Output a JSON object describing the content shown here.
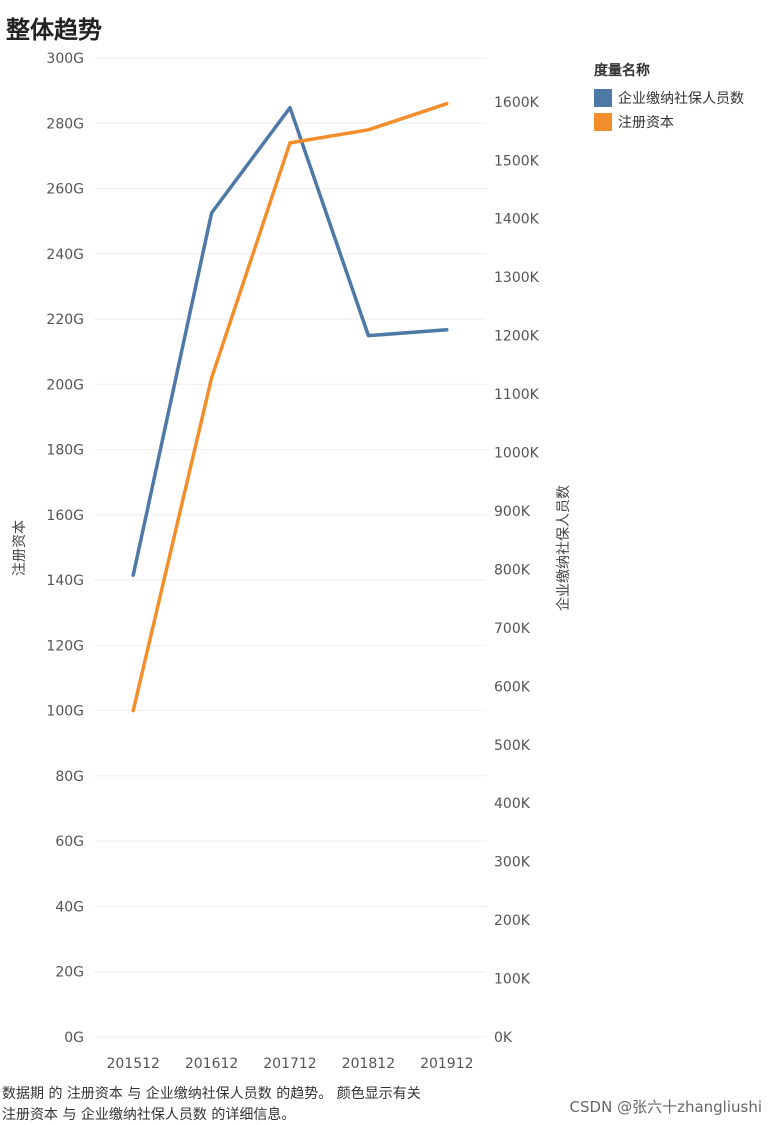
{
  "title": "整体趋势",
  "legend": {
    "title": "度量名称",
    "items": [
      {
        "label": "企业缴纳社保人员数",
        "color": "#4e79a7"
      },
      {
        "label": "注册资本",
        "color": "#f28e2b"
      }
    ]
  },
  "caption": {
    "line1": "数据期 的 注册资本 与 企业缴纳社保人员数 的趋势。 颜色显示有关",
    "line2": "注册资本 与 企业缴纳社保人员数 的详细信息。"
  },
  "watermark": "CSDN @张六十zhangliushi",
  "chart_data": {
    "type": "line",
    "title": "整体趋势",
    "categories": [
      "201512",
      "201612",
      "201712",
      "201812",
      "201912"
    ],
    "left_axis": {
      "label": "注册资本",
      "ylim": [
        0,
        300
      ],
      "ticks": [
        "0G",
        "20G",
        "40G",
        "60G",
        "80G",
        "100G",
        "120G",
        "140G",
        "160G",
        "180G",
        "200G",
        "220G",
        "240G",
        "260G",
        "280G",
        "300G"
      ]
    },
    "right_axis": {
      "label": "企业缴纳社保人员数",
      "ylim": [
        0,
        1675
      ],
      "ticks": [
        "0K",
        "100K",
        "200K",
        "300K",
        "400K",
        "500K",
        "600K",
        "700K",
        "800K",
        "900K",
        "1000K",
        "1100K",
        "1200K",
        "1300K",
        "1400K",
        "1500K",
        "1600K"
      ]
    },
    "series": [
      {
        "name": "企业缴纳社保人员数",
        "axis": "right",
        "color": "#4e79a7",
        "values": [
          790,
          1410,
          1590,
          1200,
          1210
        ]
      },
      {
        "name": "注册资本",
        "axis": "left",
        "color": "#f28e2b",
        "values": [
          100,
          202,
          274,
          278,
          286
        ]
      }
    ],
    "grid": true,
    "legend_position": "top-right"
  }
}
